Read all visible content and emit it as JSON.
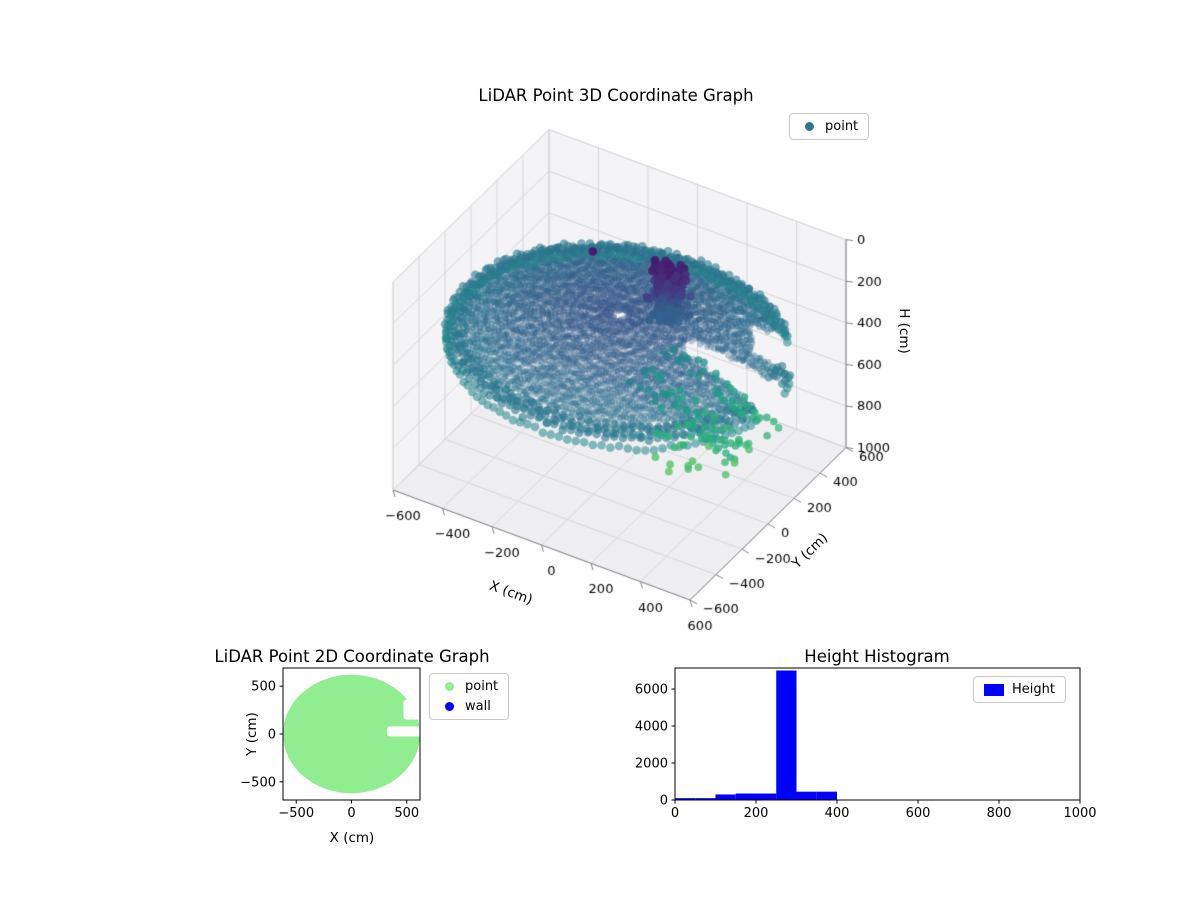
{
  "figure": {
    "background": "#ffffff"
  },
  "chart_data": [
    {
      "id": "lidar-3d",
      "type": "scatter",
      "projection": "3d",
      "title": "LiDAR Point 3D Coordinate Graph",
      "xlabel": "X (cm)",
      "ylabel": "Y (cm)",
      "zlabel": "H (cm)",
      "xlim": [
        -600,
        600
      ],
      "ylim": [
        -600,
        600
      ],
      "zlim": [
        0,
        1000
      ],
      "zaxis_inverted": true,
      "xticks": [
        -600,
        -400,
        -200,
        0,
        200,
        400,
        600
      ],
      "yticks": [
        -600,
        -400,
        -200,
        0,
        200,
        400,
        600
      ],
      "zticks": [
        0,
        200,
        400,
        600,
        800,
        1000
      ],
      "colormap": "viridis",
      "legend": {
        "location": "upper right",
        "entries": [
          {
            "label": "point",
            "color": "#2a788e",
            "marker": "circle"
          }
        ]
      },
      "point_cloud": {
        "disc": {
          "center_xy": [
            0,
            0
          ],
          "radius_min": 30,
          "radius_max": 620,
          "height_center": 260,
          "height_rim": 395,
          "gap_angles_deg": [
            [
              351,
              9
            ],
            [
              18,
              40
            ]
          ]
        },
        "cluster": {
          "center_xy": [
            120,
            140
          ],
          "spread": 65,
          "height_range": [
            60,
            300
          ],
          "count": 230
        },
        "under_streaks": {
          "x_range": [
            140,
            570
          ],
          "y_values": [
            -170,
            -90,
            -10,
            60,
            140
          ],
          "height_start": 400,
          "height_slope": 0.5
        },
        "outlier_point": {
          "x": -150,
          "y": 80,
          "height": 70
        }
      }
    },
    {
      "id": "lidar-2d",
      "type": "scatter",
      "title": "LiDAR Point 2D Coordinate Graph",
      "xlabel": "X (cm)",
      "ylabel": "Y (cm)",
      "xlim": [
        -620,
        620
      ],
      "ylim": [
        -690,
        690
      ],
      "xticks": [
        -500,
        0,
        500
      ],
      "yticks": [
        -500,
        0,
        500
      ],
      "legend": {
        "location": "outside upper right",
        "entries": [
          {
            "label": "point",
            "color": "#90ee90",
            "marker": "circle"
          },
          {
            "label": "wall",
            "color": "#0000ff",
            "marker": "circle"
          }
        ]
      },
      "point_region": {
        "shape": "filled-disc",
        "center": [
          0,
          0
        ],
        "radius": 620,
        "color": "#90ee90",
        "gaps": [
          {
            "x_range": [
              320,
              640
            ],
            "y_range": [
              -25,
              80
            ]
          },
          {
            "x_range": [
              470,
              640
            ],
            "y_range": [
              150,
              360
            ]
          }
        ]
      }
    },
    {
      "id": "height-histogram",
      "type": "bar",
      "title": "Height Histogram",
      "xlim": [
        0,
        1000
      ],
      "ylim": [
        0,
        7135
      ],
      "xticks": [
        0,
        200,
        400,
        600,
        800,
        1000
      ],
      "yticks": [
        0,
        2000,
        4000,
        6000
      ],
      "bin_start": 0,
      "bin_width": 50,
      "values": [
        100,
        100,
        300,
        350,
        350,
        7000,
        450,
        450
      ],
      "bar_color": "#0000ff",
      "legend": {
        "location": "upper right",
        "entries": [
          {
            "label": "Height",
            "color": "#0000ff",
            "marker": "patch"
          }
        ]
      }
    }
  ]
}
